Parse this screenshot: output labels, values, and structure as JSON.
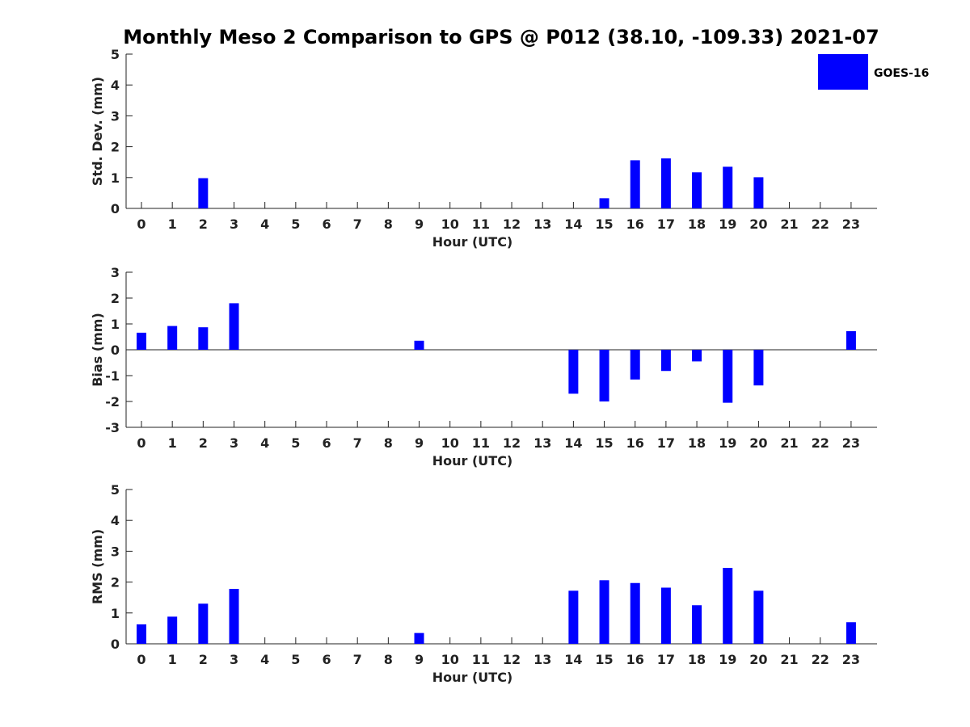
{
  "figure_title": "Monthly Meso 2 Comparison to GPS @ P012 (38.10, -109.33) 2021-07",
  "legend": {
    "label": "GOES-16",
    "color": "#0000ff",
    "placement": "top-right"
  },
  "bar_color": "#0000ff",
  "chart_data": [
    {
      "type": "bar",
      "ylabel": "Std. Dev. (mm)",
      "xlabel": "Hour (UTC)",
      "ylim": [
        0,
        5
      ],
      "yticks": [
        0,
        1,
        2,
        3,
        4,
        5
      ],
      "categories": [
        "0",
        "1",
        "2",
        "3",
        "4",
        "5",
        "6",
        "7",
        "8",
        "9",
        "10",
        "11",
        "12",
        "13",
        "14",
        "15",
        "16",
        "17",
        "18",
        "19",
        "20",
        "21",
        "22",
        "23"
      ],
      "series": [
        {
          "name": "GOES-16",
          "values": [
            0,
            0,
            0.98,
            0,
            0,
            0,
            0,
            0,
            0,
            0,
            0,
            0,
            0,
            0,
            0,
            0.33,
            1.56,
            1.62,
            1.17,
            1.35,
            1.01,
            0,
            0,
            0
          ]
        }
      ]
    },
    {
      "type": "bar",
      "ylabel": "Bias (mm)",
      "xlabel": "Hour (UTC)",
      "ylim": [
        -3,
        3
      ],
      "yticks": [
        -3,
        -2,
        -1,
        0,
        1,
        2,
        3
      ],
      "categories": [
        "0",
        "1",
        "2",
        "3",
        "4",
        "5",
        "6",
        "7",
        "8",
        "9",
        "10",
        "11",
        "12",
        "13",
        "14",
        "15",
        "16",
        "17",
        "18",
        "19",
        "20",
        "21",
        "22",
        "23"
      ],
      "series": [
        {
          "name": "GOES-16",
          "values": [
            0.66,
            0.92,
            0.87,
            1.8,
            0,
            0,
            0,
            0,
            0,
            0.35,
            0,
            0,
            0,
            0,
            -1.7,
            -2.0,
            -1.15,
            -0.82,
            -0.45,
            -2.05,
            -1.38,
            0,
            0,
            0.72
          ]
        }
      ]
    },
    {
      "type": "bar",
      "ylabel": "RMS (mm)",
      "xlabel": "Hour (UTC)",
      "ylim": [
        0,
        5
      ],
      "yticks": [
        0,
        1,
        2,
        3,
        4,
        5
      ],
      "categories": [
        "0",
        "1",
        "2",
        "3",
        "4",
        "5",
        "6",
        "7",
        "8",
        "9",
        "10",
        "11",
        "12",
        "13",
        "14",
        "15",
        "16",
        "17",
        "18",
        "19",
        "20",
        "21",
        "22",
        "23"
      ],
      "series": [
        {
          "name": "GOES-16",
          "values": [
            0.63,
            0.88,
            1.3,
            1.78,
            0,
            0,
            0,
            0,
            0,
            0.35,
            0,
            0,
            0,
            0,
            1.72,
            2.06,
            1.97,
            1.82,
            1.25,
            2.46,
            1.72,
            0,
            0,
            0.7
          ]
        }
      ]
    }
  ]
}
